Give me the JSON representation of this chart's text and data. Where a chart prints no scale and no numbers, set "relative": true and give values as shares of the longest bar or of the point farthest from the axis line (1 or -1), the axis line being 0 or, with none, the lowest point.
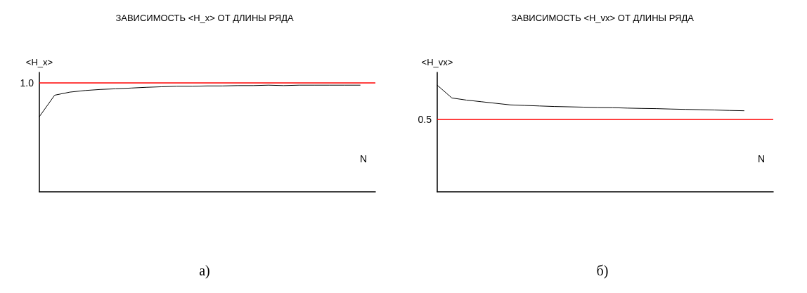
{
  "chart_data": [
    {
      "type": "line",
      "title": "ЗАВИСИМОСТЬ <H_x> ОТ ДЛИНЫ РЯДА",
      "xlabel": "N",
      "ylabel": "<H_x>",
      "relative": true,
      "annotations": [
        "1.0",
        "а)"
      ],
      "categories": [
        null,
        null,
        null,
        null,
        null,
        null,
        null,
        null,
        null,
        null,
        null,
        null,
        null,
        null,
        null,
        null,
        null,
        null,
        null,
        null,
        null,
        null,
        null
      ],
      "series": [
        {
          "color": "#000000",
          "values": [
            0.705,
            0.906,
            0.935,
            0.95,
            0.96,
            0.966,
            0.973,
            0.98,
            0.985,
            0.99,
            0.99,
            0.993,
            0.993,
            0.996,
            0.996,
            1,
            0.996,
            1,
            1,
            1,
            1,
            1,
            null
          ]
        }
      ],
      "ref_lines": [
        {
          "axis": "y",
          "value": 1.02,
          "color": "#ff0000"
        }
      ],
      "marker": "none",
      "line_style": "solid"
    },
    {
      "type": "line",
      "title": "ЗАВИСИМОСТЬ <H_vx> ОТ ДЛИНЫ РЯДА",
      "xlabel": "N",
      "ylabel": "<H_vx>",
      "relative": true,
      "annotations": [
        "0.5",
        "б)"
      ],
      "categories": [
        null,
        null,
        null,
        null,
        null,
        null,
        null,
        null,
        null,
        null,
        null,
        null,
        null,
        null,
        null,
        null,
        null,
        null,
        null,
        null,
        null,
        null,
        null,
        null
      ],
      "series": [
        {
          "color": "#000000",
          "values": [
            1,
            0.88,
            0.86,
            0.845,
            0.83,
            0.815,
            0.81,
            0.805,
            0.8,
            0.797,
            0.794,
            0.79,
            0.789,
            0.785,
            0.782,
            0.78,
            0.776,
            0.773,
            0.77,
            0.767,
            0.763,
            0.76,
            null,
            null
          ]
        }
      ],
      "ref_lines": [
        {
          "axis": "y",
          "value": 0.677,
          "color": "#ff0000"
        }
      ],
      "marker": "none",
      "line_style": "solid"
    }
  ]
}
